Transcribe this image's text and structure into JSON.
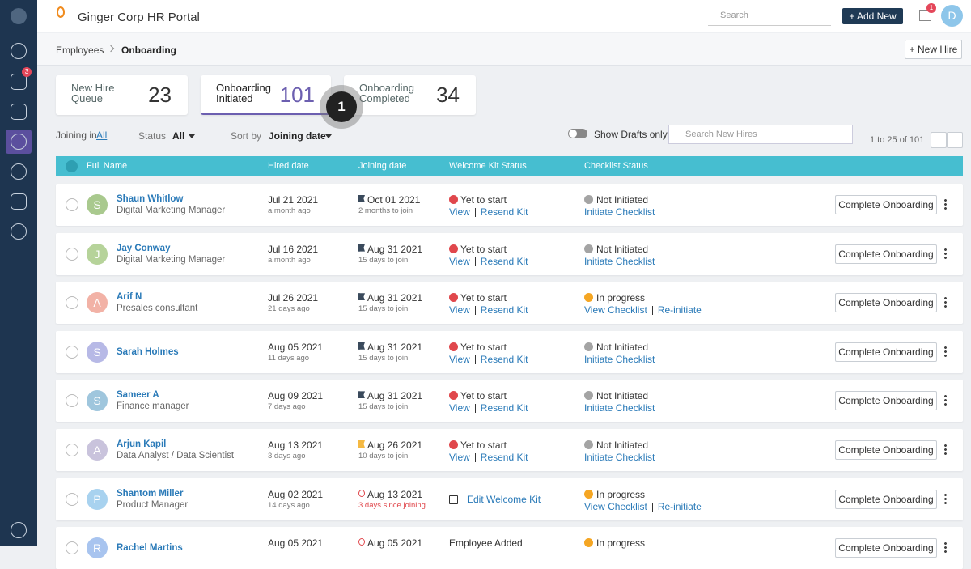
{
  "header": {
    "title": "Ginger Corp HR Portal",
    "search": "Search",
    "add_new": "+ Add New",
    "notifications": "1",
    "avatar": "D"
  },
  "sidebar": {
    "badge": "3"
  },
  "breadcrumb": {
    "items": [
      "Employees",
      "Onboarding"
    ],
    "new_hire": "+ New Hire"
  },
  "stats": [
    {
      "label": "New Hire Queue",
      "value": 23
    },
    {
      "label": "Onboarding Initiated",
      "value": 101
    },
    {
      "label": "Onboarding Completed",
      "value": 34
    }
  ],
  "step_marker": "1",
  "filters": {
    "joining_label": "Joining in",
    "joining_value": "All",
    "status_label": "Status",
    "status_value": "All",
    "sort_label": "Sort by",
    "sort_value": "Joining date",
    "drafts": "Show Drafts only",
    "search": "Search New Hires",
    "pagination": "1 to 25 of 101"
  },
  "table": {
    "columns": [
      "Full Name",
      "Hired date",
      "Joining date",
      "Welcome Kit Status",
      "Checklist Status"
    ],
    "action": "Complete Onboarding",
    "rows": [
      {
        "initial": "S",
        "avatar_color": "#a9c98e",
        "name": "Shaun Whitlow",
        "role": "Digital Marketing Manager",
        "hired": "Jul 21 2021",
        "hired_ago": "a month ago",
        "joining": "Oct 01 2021",
        "joining_note": "2 months to join",
        "flag_color": "#3a4a5c",
        "kit_status": "Yet to start",
        "kit_color": "#e0474c",
        "kit_actions": [
          "View",
          "Resend Kit"
        ],
        "checklist_status": "Not Initiated",
        "checklist_color": "#a4a4a4",
        "checklist_actions": [
          "Initiate Checklist"
        ]
      },
      {
        "initial": "J",
        "avatar_color": "#b6d39a",
        "name": "Jay Conway",
        "role": "Digital Marketing Manager",
        "hired": "Jul 16 2021",
        "hired_ago": "a month ago",
        "joining": "Aug 31 2021",
        "joining_note": "15 days to join",
        "flag_color": "#3a4a5c",
        "kit_status": "Yet to start",
        "kit_color": "#e0474c",
        "kit_actions": [
          "View",
          "Resend Kit"
        ],
        "checklist_status": "Not Initiated",
        "checklist_color": "#a4a4a4",
        "checklist_actions": [
          "Initiate Checklist"
        ]
      },
      {
        "initial": "A",
        "avatar_color": "#f2b2a6",
        "name": "Arif N",
        "role": "Presales consultant",
        "hired": "Jul 26 2021",
        "hired_ago": "21 days ago",
        "joining": "Aug 31 2021",
        "joining_note": "15 days to join",
        "flag_color": "#3a4a5c",
        "kit_status": "Yet to start",
        "kit_color": "#e0474c",
        "kit_actions": [
          "View",
          "Resend Kit"
        ],
        "checklist_status": "In progress",
        "checklist_color": "#f5a623",
        "checklist_actions": [
          "View Checklist",
          "Re-initiate"
        ]
      },
      {
        "initial": "S",
        "avatar_color": "#b7b9e6",
        "name": "Sarah Holmes",
        "hired": "Aug 05 2021",
        "hired_ago": "11 days ago",
        "joining": "Aug 31 2021",
        "joining_note": "15 days to join",
        "flag_color": "#3a4a5c",
        "kit_status": "Yet to start",
        "kit_color": "#e0474c",
        "kit_actions": [
          "View",
          "Resend Kit"
        ],
        "checklist_status": "Not Initiated",
        "checklist_color": "#a4a4a4",
        "checklist_actions": [
          "Initiate Checklist"
        ]
      },
      {
        "initial": "S",
        "avatar_color": "#9fc6dd",
        "name": "Sameer A",
        "role": "Finance manager",
        "hired": "Aug 09 2021",
        "hired_ago": "7 days ago",
        "joining": "Aug 31 2021",
        "joining_note": "15 days to join",
        "flag_color": "#3a4a5c",
        "kit_status": "Yet to start",
        "kit_color": "#e0474c",
        "kit_actions": [
          "View",
          "Resend Kit"
        ],
        "checklist_status": "Not Initiated",
        "checklist_color": "#a4a4a4",
        "checklist_actions": [
          "Initiate Checklist"
        ]
      },
      {
        "initial": "A",
        "avatar_color": "#c9c3dc",
        "name": "Arjun Kapil",
        "role": "Data Analyst / Data Scientist",
        "hired": "Aug 13 2021",
        "hired_ago": "3 days ago",
        "joining": "Aug 26 2021",
        "joining_note": "10 days to join",
        "flag_color": "#f5b942",
        "kit_status": "Yet to start",
        "kit_color": "#e0474c",
        "kit_actions": [
          "View",
          "Resend Kit"
        ],
        "checklist_status": "Not Initiated",
        "checklist_color": "#a4a4a4",
        "checklist_actions": [
          "Initiate Checklist"
        ]
      },
      {
        "initial": "P",
        "avatar_color": "#a8d2ef",
        "name": "Shantom Miller",
        "role": "Product Manager",
        "hired": "Aug 02 2021",
        "hired_ago": "14 days ago",
        "joining": "Aug 13 2021",
        "joining_note": "3 days since joining ...",
        "flag_color": "#e0474c",
        "kit_actions": [
          "Edit Welcome Kit"
        ],
        "checklist_status": "In progress",
        "checklist_color": "#f5a623",
        "checklist_actions": [
          "View Checklist",
          "Re-initiate"
        ]
      },
      {
        "initial": "R",
        "avatar_color": "#a8c4ef",
        "name": "Rachel Martins",
        "hired": "Aug 05 2021",
        "joining": "Aug 05 2021",
        "flag_color": "#e0474c",
        "kit_status": "Employee Added",
        "checklist_status": "In progress",
        "checklist_color": "#f5a623"
      }
    ]
  }
}
